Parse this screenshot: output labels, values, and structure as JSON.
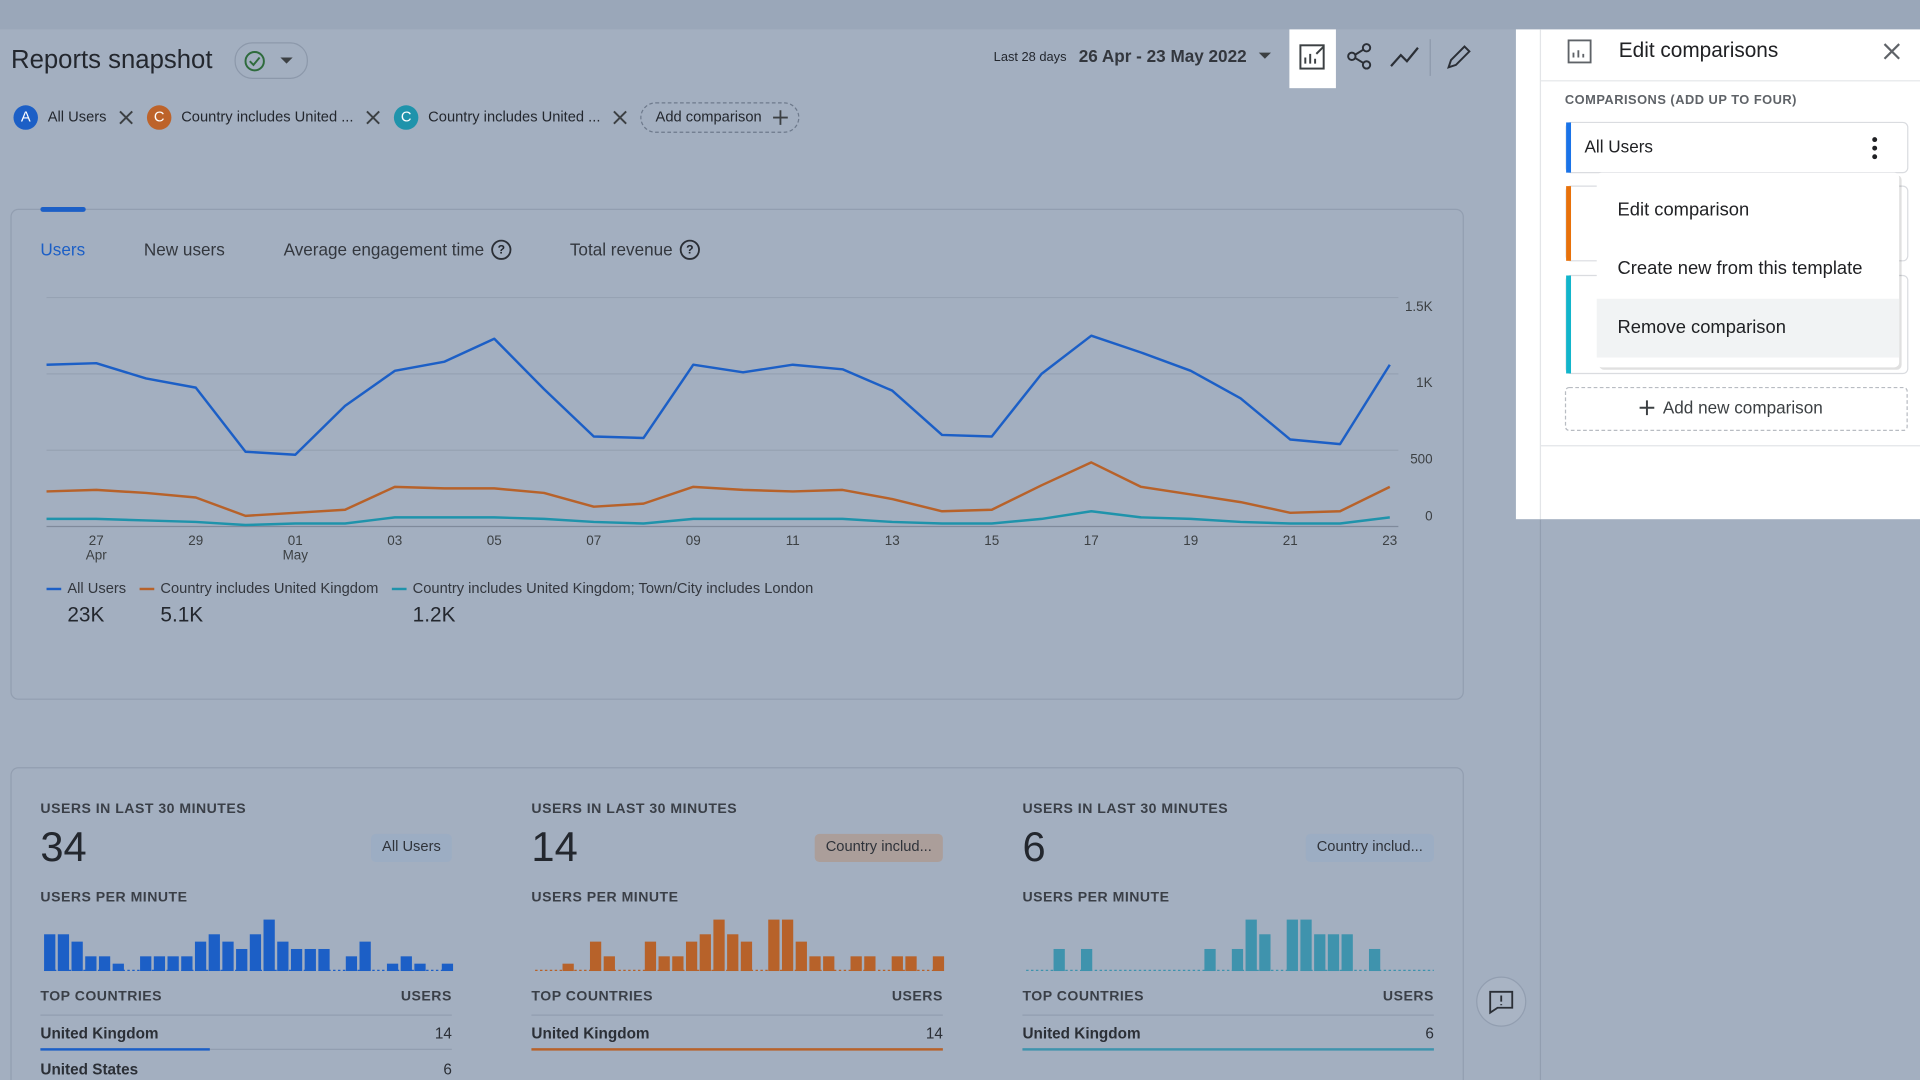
{
  "header": {
    "title": "Reports snapshot",
    "date_label": "Last 28 days",
    "date_range": "26 Apr - 23 May 2022"
  },
  "comparisons": [
    {
      "letter": "A",
      "label": "All Users",
      "color": "#1c5fc6"
    },
    {
      "letter": "C",
      "label": "Country includes United ...",
      "color": "#bd632a"
    },
    {
      "letter": "C",
      "label": "Country includes United ...",
      "color": "#1f93ab"
    }
  ],
  "add_comparison": "Add comparison",
  "tabs": [
    "Users",
    "New users",
    "Average engagement time",
    "Total revenue"
  ],
  "chart_data": {
    "type": "line",
    "categories": [
      null,
      "27",
      null,
      "29",
      null,
      "01",
      null,
      "03",
      null,
      "05",
      null,
      "07",
      null,
      "09",
      null,
      "11",
      null,
      "13",
      null,
      "15",
      null,
      "17",
      null,
      "19",
      null,
      "21",
      null,
      "23"
    ],
    "category_months": [
      null,
      "Apr",
      null,
      null,
      null,
      "May",
      null,
      null,
      null,
      null,
      null,
      null,
      null,
      null,
      null,
      null,
      null,
      null,
      null,
      null,
      null,
      null,
      null,
      null,
      null,
      null,
      null,
      null
    ],
    "ylim": [
      0,
      1500
    ],
    "yticks": [
      0,
      500,
      {
        "value": 1000,
        "label": "1K"
      },
      {
        "value": 1500,
        "label": "1.5K"
      }
    ],
    "grid": true,
    "series": [
      {
        "name": "All Users",
        "color": "#1c5fc6",
        "total_label": "23K",
        "values": [
          1060,
          1070,
          970,
          910,
          490,
          470,
          790,
          1020,
          1080,
          1230,
          900,
          590,
          580,
          1060,
          1010,
          1060,
          1030,
          890,
          600,
          590,
          1000,
          1250,
          1140,
          1020,
          840,
          570,
          540,
          1060
        ]
      },
      {
        "name": "Country includes United Kingdom",
        "color": "#b7622a",
        "total_label": "5.1K",
        "values": [
          230,
          240,
          220,
          190,
          70,
          90,
          110,
          260,
          250,
          250,
          220,
          130,
          150,
          260,
          240,
          230,
          240,
          180,
          100,
          110,
          270,
          420,
          260,
          210,
          160,
          90,
          100,
          260
        ]
      },
      {
        "name": "Country includes United Kingdom; Town/City includes London",
        "color": "#1f93ab",
        "total_label": "1.2K",
        "values": [
          50,
          50,
          40,
          30,
          10,
          20,
          20,
          60,
          60,
          60,
          50,
          30,
          20,
          50,
          50,
          50,
          50,
          30,
          20,
          20,
          50,
          100,
          60,
          50,
          30,
          20,
          20,
          60
        ]
      }
    ]
  },
  "realtime_cards": [
    {
      "heading": "USERS IN LAST 30 MINUTES",
      "value": 34,
      "segment": "All Users",
      "per_minute_heading": "USERS PER MINUTE",
      "color": "#1c5fc6",
      "per_minute": [
        5,
        5,
        4,
        2,
        2,
        1,
        0,
        2,
        2,
        2,
        2,
        4,
        5,
        4,
        3,
        5,
        7,
        4,
        3,
        3,
        3,
        0,
        2,
        4,
        0,
        1,
        2,
        1,
        0,
        1
      ],
      "countries_heading": "TOP COUNTRIES",
      "users_heading": "USERS",
      "countries": [
        {
          "name": "United Kingdom",
          "users": 14
        },
        {
          "name": "United States",
          "users": 6
        }
      ]
    },
    {
      "heading": "USERS IN LAST 30 MINUTES",
      "value": 14,
      "segment": "Country includ...",
      "per_minute_heading": "USERS PER MINUTE",
      "color": "#b7622a",
      "per_minute": [
        0,
        0,
        1,
        0,
        4,
        2,
        0,
        0,
        4,
        2,
        2,
        4,
        5,
        7,
        5,
        4,
        0,
        7,
        7,
        4,
        2,
        2,
        0,
        2,
        2,
        0,
        2,
        2,
        0,
        2
      ],
      "countries_heading": "TOP COUNTRIES",
      "users_heading": "USERS",
      "countries": [
        {
          "name": "United Kingdom",
          "users": 14
        }
      ]
    },
    {
      "heading": "USERS IN LAST 30 MINUTES",
      "value": 6,
      "segment": "Country includ...",
      "per_minute_heading": "USERS PER MINUTE",
      "color": "#3f93ad",
      "per_minute": [
        0,
        0,
        3,
        0,
        3,
        0,
        0,
        0,
        0,
        0,
        0,
        0,
        0,
        3,
        0,
        3,
        7,
        5,
        0,
        7,
        7,
        5,
        5,
        5,
        0,
        3,
        0,
        0,
        0,
        0
      ],
      "countries_heading": "TOP COUNTRIES",
      "users_heading": "USERS",
      "countries": [
        {
          "name": "United Kingdom",
          "users": 6
        }
      ]
    }
  ],
  "panel": {
    "title": "Edit comparisons",
    "subtitle": "COMPARISONS (ADD UP TO FOUR)",
    "item": "All Users",
    "menu": [
      "Edit comparison",
      "Create new from this template",
      "Remove comparison"
    ],
    "add_new": "Add new comparison"
  }
}
